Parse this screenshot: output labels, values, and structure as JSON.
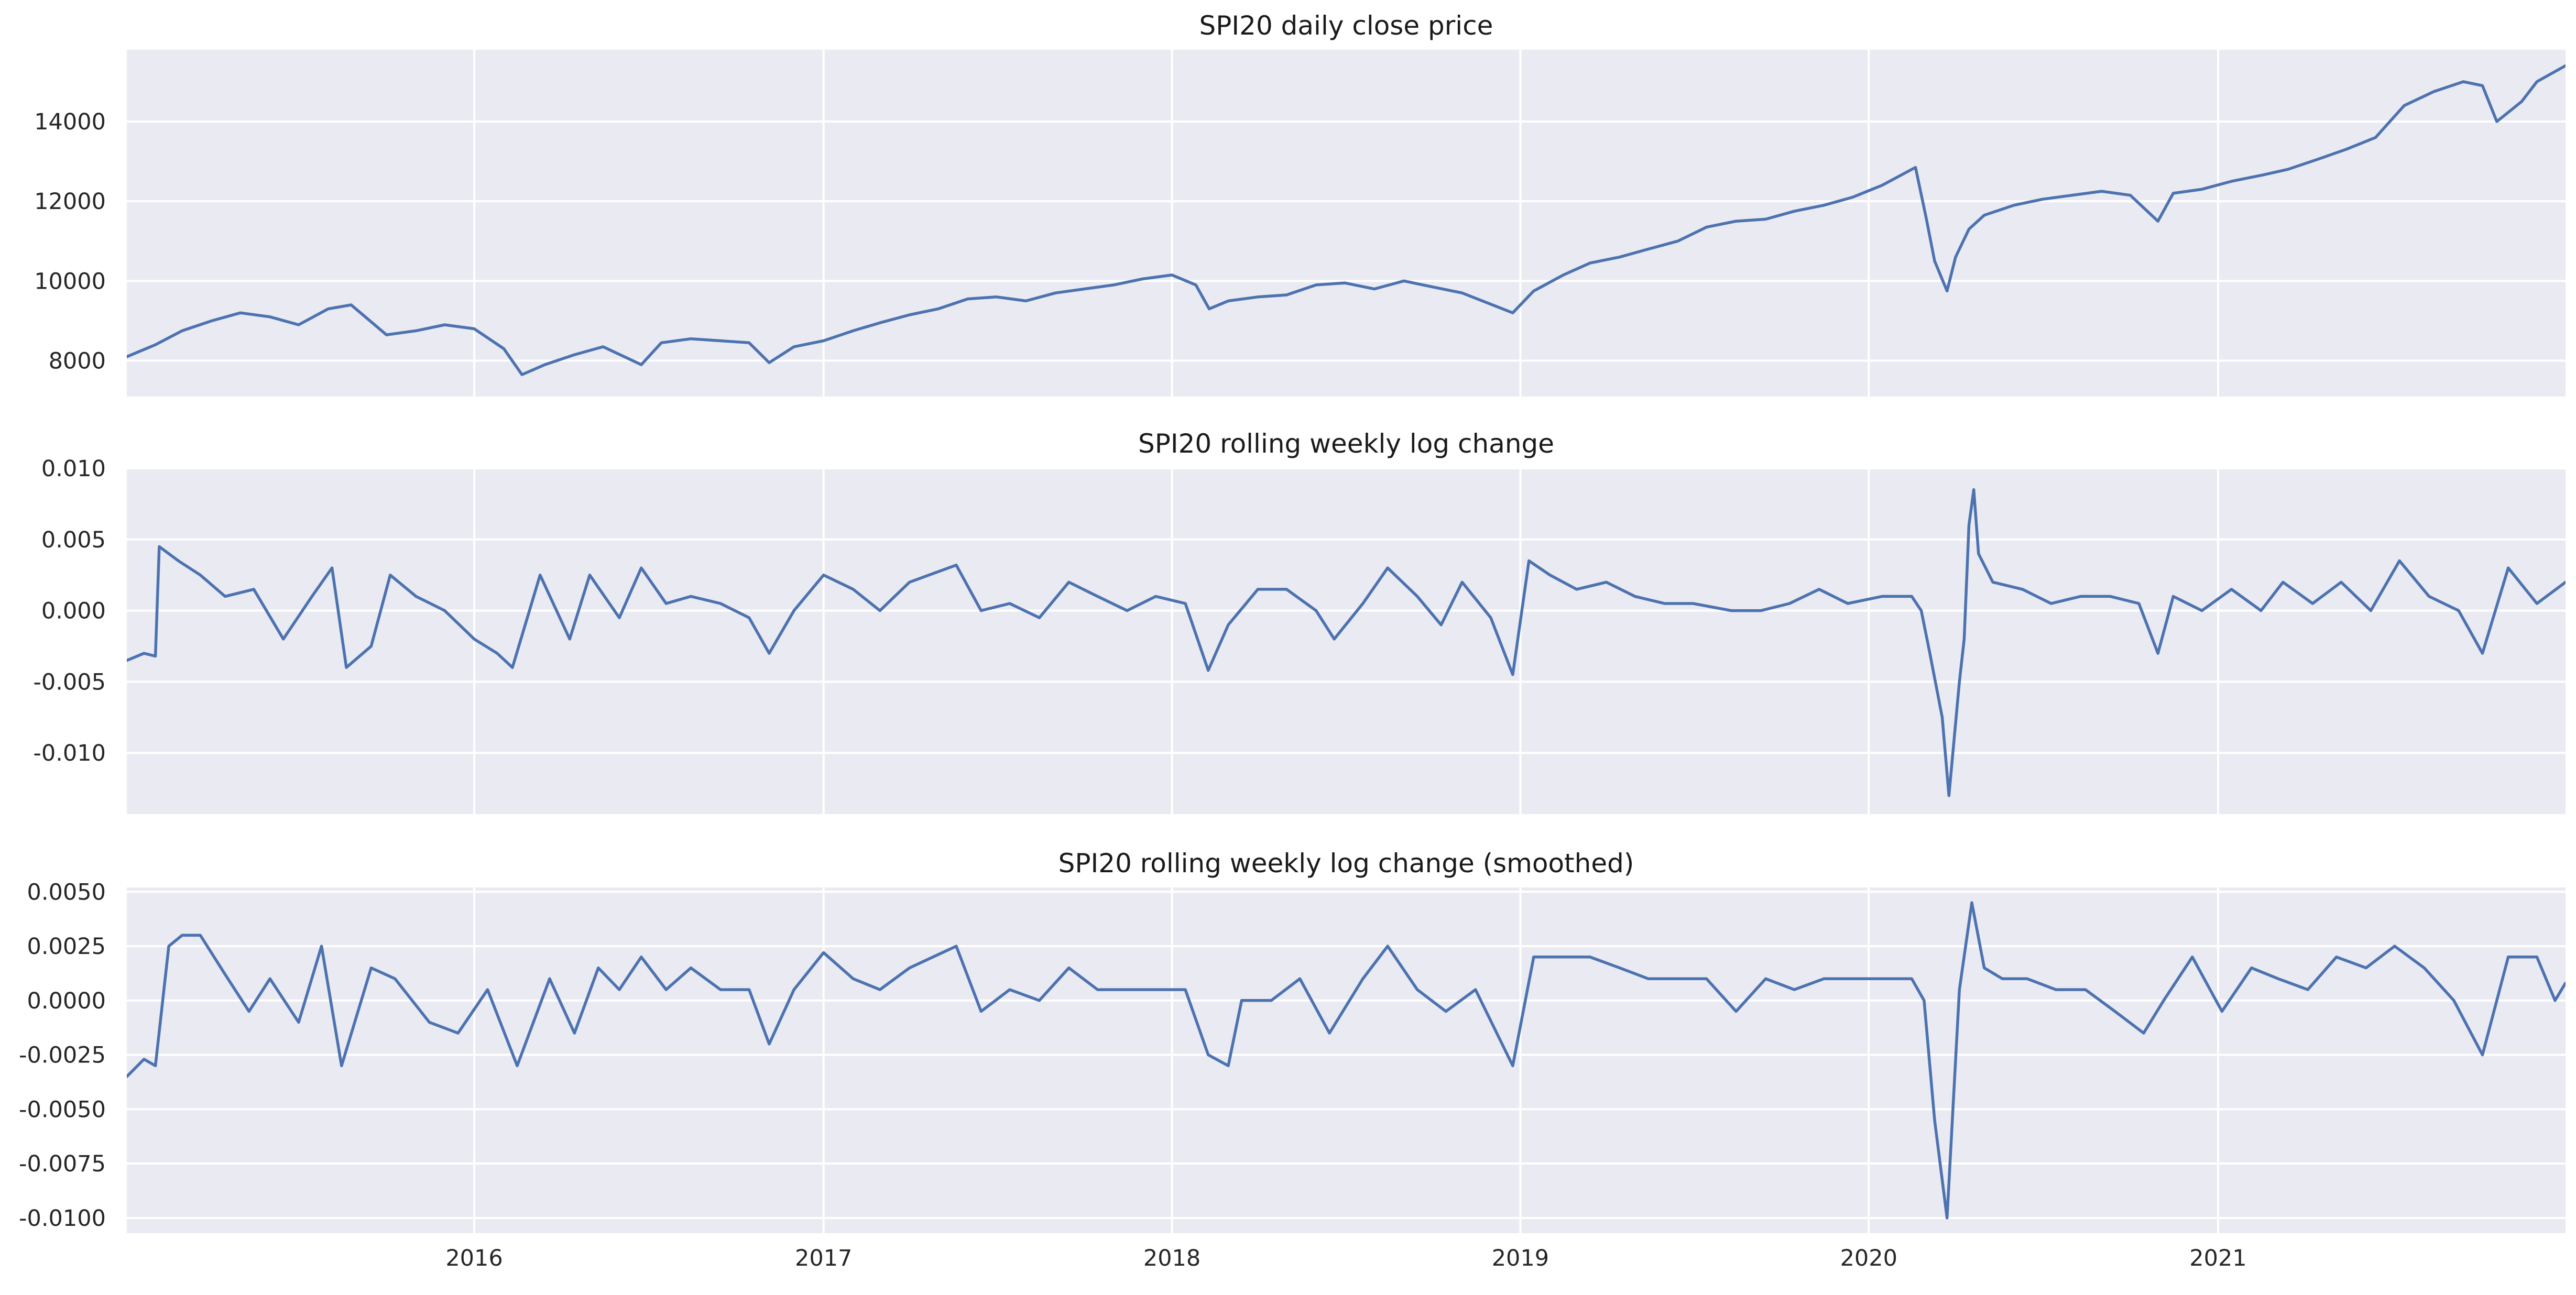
{
  "colors": {
    "background": "#ffffff",
    "plot_face": "#eaeaf2",
    "grid": "#ffffff",
    "line": "#4c72b0",
    "text": "#262626"
  },
  "chart_data": [
    {
      "type": "line",
      "title": "SPI20 daily close price",
      "xlabel": "",
      "ylabel": "",
      "x_range": [
        "2015-01-02",
        "2021-12-31"
      ],
      "x_ticks": [
        "2016",
        "2017",
        "2018",
        "2019",
        "2020",
        "2021"
      ],
      "ylim": [
        7100,
        15800
      ],
      "y_ticks": [
        "8000",
        "10000",
        "12000",
        "14000"
      ],
      "grid": true,
      "series": [
        {
          "x": [
            "2015-01-02",
            "2015-02-01",
            "2015-03-01",
            "2015-04-01",
            "2015-05-01",
            "2015-06-01",
            "2015-07-01",
            "2015-08-01",
            "2015-08-25",
            "2015-10-01",
            "2015-11-01",
            "2015-12-01",
            "2016-01-01",
            "2016-02-01",
            "2016-02-20",
            "2016-03-15",
            "2016-04-15",
            "2016-05-15",
            "2016-06-24",
            "2016-07-15",
            "2016-08-15",
            "2016-09-15",
            "2016-10-15",
            "2016-11-05",
            "2016-12-01",
            "2017-01-01",
            "2017-02-01",
            "2017-03-01",
            "2017-04-01",
            "2017-05-01",
            "2017-06-01",
            "2017-07-01",
            "2017-08-01",
            "2017-09-01",
            "2017-10-01",
            "2017-11-01",
            "2017-12-01",
            "2018-01-01",
            "2018-01-26",
            "2018-02-09",
            "2018-03-01",
            "2018-04-01",
            "2018-05-01",
            "2018-06-01",
            "2018-07-01",
            "2018-08-01",
            "2018-09-01",
            "2018-10-01",
            "2018-11-01",
            "2018-12-24",
            "2019-01-15",
            "2019-02-15",
            "2019-03-15",
            "2019-04-15",
            "2019-05-15",
            "2019-06-15",
            "2019-07-15",
            "2019-08-15",
            "2019-09-15",
            "2019-10-15",
            "2019-11-15",
            "2019-12-15",
            "2020-01-15",
            "2020-02-19",
            "2020-03-01",
            "2020-03-10",
            "2020-03-23",
            "2020-04-01",
            "2020-04-15",
            "2020-05-01",
            "2020-06-01",
            "2020-07-01",
            "2020-08-01",
            "2020-09-01",
            "2020-10-01",
            "2020-10-30",
            "2020-11-15",
            "2020-12-15",
            "2021-01-15",
            "2021-02-15",
            "2021-03-15",
            "2021-04-15",
            "2021-05-15",
            "2021-06-15",
            "2021-07-15",
            "2021-08-15",
            "2021-09-15",
            "2021-10-05",
            "2021-10-20",
            "2021-11-15",
            "2021-12-01",
            "2021-12-31"
          ],
          "y": [
            8100,
            8400,
            8750,
            9000,
            9200,
            9100,
            8900,
            9300,
            9400,
            8650,
            8750,
            8900,
            8800,
            8300,
            7650,
            7900,
            8150,
            8350,
            7900,
            8450,
            8550,
            8500,
            8450,
            7950,
            8350,
            8500,
            8750,
            8950,
            9150,
            9300,
            9550,
            9600,
            9500,
            9700,
            9800,
            9900,
            10050,
            10150,
            9900,
            9300,
            9500,
            9600,
            9650,
            9900,
            9950,
            9800,
            10000,
            9850,
            9700,
            9200,
            9750,
            10150,
            10450,
            10600,
            10800,
            11000,
            11350,
            11500,
            11550,
            11750,
            11900,
            12100,
            12400,
            12850,
            11600,
            10500,
            9750,
            10600,
            11300,
            11650,
            11900,
            12050,
            12150,
            12250,
            12150,
            11500,
            12200,
            12300,
            12500,
            12650,
            12800,
            13050,
            13300,
            13600,
            14400,
            14750,
            15000,
            14900,
            14000,
            14500,
            15000,
            15400
          ]
        }
      ]
    },
    {
      "type": "line",
      "title": "SPI20 rolling weekly log change",
      "xlabel": "",
      "ylabel": "",
      "x_range": [
        "2015-01-02",
        "2021-12-31"
      ],
      "x_ticks": [
        "2016",
        "2017",
        "2018",
        "2019",
        "2020",
        "2021"
      ],
      "ylim": [
        -0.0143,
        0.01
      ],
      "y_ticks": [
        "0.010",
        "0.005",
        "0.000",
        "-0.005",
        "-0.010"
      ],
      "grid": true,
      "series": [
        {
          "x": [
            "2015-01-02",
            "2015-01-20",
            "2015-02-01",
            "2015-02-05",
            "2015-02-25",
            "2015-03-20",
            "2015-04-15",
            "2015-05-15",
            "2015-06-15",
            "2015-07-15",
            "2015-08-05",
            "2015-08-20",
            "2015-09-15",
            "2015-10-05",
            "2015-11-01",
            "2015-12-01",
            "2016-01-01",
            "2016-01-25",
            "2016-02-10",
            "2016-03-10",
            "2016-04-10",
            "2016-05-01",
            "2016-06-01",
            "2016-06-24",
            "2016-07-20",
            "2016-08-15",
            "2016-09-15",
            "2016-10-15",
            "2016-11-05",
            "2016-12-01",
            "2017-01-01",
            "2017-02-01",
            "2017-03-01",
            "2017-04-01",
            "2017-05-20",
            "2017-06-15",
            "2017-07-15",
            "2017-08-15",
            "2017-09-15",
            "2017-10-15",
            "2017-11-15",
            "2017-12-15",
            "2018-01-15",
            "2018-02-08",
            "2018-03-01",
            "2018-04-01",
            "2018-05-01",
            "2018-06-01",
            "2018-06-20",
            "2018-07-20",
            "2018-08-15",
            "2018-09-15",
            "2018-10-10",
            "2018-11-01",
            "2018-12-01",
            "2018-12-24",
            "2019-01-10",
            "2019-02-01",
            "2019-03-01",
            "2019-04-01",
            "2019-05-01",
            "2019-06-01",
            "2019-07-01",
            "2019-08-10",
            "2019-09-10",
            "2019-10-10",
            "2019-11-10",
            "2019-12-10",
            "2020-01-15",
            "2020-02-15",
            "2020-02-25",
            "2020-03-05",
            "2020-03-18",
            "2020-03-25",
            "2020-04-05",
            "2020-04-10",
            "2020-04-15",
            "2020-04-20",
            "2020-04-25",
            "2020-05-10",
            "2020-06-10",
            "2020-07-10",
            "2020-08-10",
            "2020-09-10",
            "2020-10-10",
            "2020-10-30",
            "2020-11-15",
            "2020-12-15",
            "2021-01-15",
            "2021-02-15",
            "2021-03-10",
            "2021-04-10",
            "2021-05-10",
            "2021-06-10",
            "2021-07-10",
            "2021-08-10",
            "2021-09-10",
            "2021-10-05",
            "2021-11-01",
            "2021-12-01",
            "2021-12-31"
          ],
          "y": [
            -0.0035,
            -0.003,
            -0.0032,
            0.0045,
            0.0035,
            0.0025,
            0.001,
            0.0015,
            -0.002,
            0.001,
            0.003,
            -0.004,
            -0.0025,
            0.0025,
            0.001,
            0.0,
            -0.002,
            -0.003,
            -0.004,
            0.0025,
            -0.002,
            0.0025,
            -0.0005,
            0.003,
            0.0005,
            0.001,
            0.0005,
            -0.0005,
            -0.003,
            0.0,
            0.0025,
            0.0015,
            0.0,
            0.002,
            0.0032,
            0.0,
            0.0005,
            -0.0005,
            0.002,
            0.001,
            0.0,
            0.001,
            0.0005,
            -0.0042,
            -0.001,
            0.0015,
            0.0015,
            0.0,
            -0.002,
            0.0005,
            0.003,
            0.001,
            -0.001,
            0.002,
            -0.0005,
            -0.0045,
            0.0035,
            0.0025,
            0.0015,
            0.002,
            0.001,
            0.0005,
            0.0005,
            0.0,
            0.0,
            0.0005,
            0.0015,
            0.0005,
            0.001,
            0.001,
            0.0,
            -0.003,
            -0.0075,
            -0.013,
            -0.005,
            -0.002,
            0.006,
            0.0085,
            0.004,
            0.002,
            0.0015,
            0.0005,
            0.001,
            0.001,
            0.0005,
            -0.003,
            0.001,
            0.0,
            0.0015,
            0.0,
            0.002,
            0.0005,
            0.002,
            0.0,
            0.0035,
            0.001,
            0.0,
            -0.003,
            0.003,
            0.0005,
            0.002
          ]
        }
      ]
    },
    {
      "type": "line",
      "title": "SPI20 rolling weekly log change (smoothed)",
      "xlabel": "",
      "ylabel": "",
      "x_range": [
        "2015-01-02",
        "2021-12-31"
      ],
      "x_ticks": [
        "2016",
        "2017",
        "2018",
        "2019",
        "2020",
        "2021"
      ],
      "ylim": [
        -0.0107,
        0.0052
      ],
      "y_ticks": [
        "0.0050",
        "0.0025",
        "0.0000",
        "-0.0025",
        "-0.0050",
        "-0.0075",
        "-0.0100"
      ],
      "grid": true,
      "series": [
        {
          "x": [
            "2015-01-02",
            "2015-01-20",
            "2015-02-01",
            "2015-02-15",
            "2015-03-01",
            "2015-03-20",
            "2015-04-15",
            "2015-05-10",
            "2015-06-01",
            "2015-07-01",
            "2015-07-25",
            "2015-08-15",
            "2015-09-15",
            "2015-10-10",
            "2015-11-15",
            "2015-12-15",
            "2016-01-15",
            "2016-02-15",
            "2016-03-20",
            "2016-04-15",
            "2016-05-10",
            "2016-06-01",
            "2016-06-24",
            "2016-07-20",
            "2016-08-15",
            "2016-09-15",
            "2016-10-15",
            "2016-11-05",
            "2016-12-01",
            "2017-01-01",
            "2017-02-01",
            "2017-03-01",
            "2017-04-01",
            "2017-05-20",
            "2017-06-15",
            "2017-07-15",
            "2017-08-15",
            "2017-09-15",
            "2017-10-15",
            "2017-11-15",
            "2017-12-15",
            "2018-01-15",
            "2018-02-08",
            "2018-03-01",
            "2018-03-15",
            "2018-04-15",
            "2018-05-15",
            "2018-06-15",
            "2018-07-20",
            "2018-08-15",
            "2018-09-15",
            "2018-10-15",
            "2018-11-15",
            "2018-12-24",
            "2019-01-15",
            "2019-02-15",
            "2019-03-15",
            "2019-04-15",
            "2019-05-15",
            "2019-06-15",
            "2019-07-15",
            "2019-08-15",
            "2019-09-15",
            "2019-10-15",
            "2019-11-15",
            "2019-12-15",
            "2020-01-15",
            "2020-02-15",
            "2020-02-28",
            "2020-03-10",
            "2020-03-23",
            "2020-04-05",
            "2020-04-18",
            "2020-05-01",
            "2020-05-20",
            "2020-06-15",
            "2020-07-15",
            "2020-08-15",
            "2020-09-15",
            "2020-10-15",
            "2020-11-05",
            "2020-12-05",
            "2021-01-05",
            "2021-02-05",
            "2021-03-05",
            "2021-04-05",
            "2021-05-05",
            "2021-06-05",
            "2021-07-05",
            "2021-08-05",
            "2021-09-05",
            "2021-10-05",
            "2021-11-01",
            "2021-12-01",
            "2021-12-20",
            "2021-12-31"
          ],
          "y": [
            -0.0035,
            -0.0027,
            -0.003,
            0.0025,
            0.003,
            0.003,
            0.0012,
            -0.0005,
            0.001,
            -0.001,
            0.0025,
            -0.003,
            0.0015,
            0.001,
            -0.001,
            -0.0015,
            0.0005,
            -0.003,
            0.001,
            -0.0015,
            0.0015,
            0.0005,
            0.002,
            0.0005,
            0.0015,
            0.0005,
            0.0005,
            -0.002,
            0.0005,
            0.0022,
            0.001,
            0.0005,
            0.0015,
            0.0025,
            -0.0005,
            0.0005,
            0.0,
            0.0015,
            0.0005,
            0.0005,
            0.0005,
            0.0005,
            -0.0025,
            -0.003,
            0.0,
            0.0,
            0.001,
            -0.0015,
            0.001,
            0.0025,
            0.0005,
            -0.0005,
            0.0005,
            -0.003,
            0.002,
            0.002,
            0.002,
            0.0015,
            0.001,
            0.001,
            0.001,
            -0.0005,
            0.001,
            0.0005,
            0.001,
            0.001,
            0.001,
            0.001,
            0.0,
            -0.0055,
            -0.01,
            0.0005,
            0.0045,
            0.0015,
            0.001,
            0.001,
            0.0005,
            0.0005,
            -0.0005,
            -0.0015,
            0.0,
            0.002,
            -0.0005,
            0.0015,
            0.001,
            0.0005,
            0.002,
            0.0015,
            0.0025,
            0.0015,
            0.0,
            -0.0025,
            0.002,
            0.002,
            0.0,
            0.0008
          ]
        }
      ]
    }
  ]
}
